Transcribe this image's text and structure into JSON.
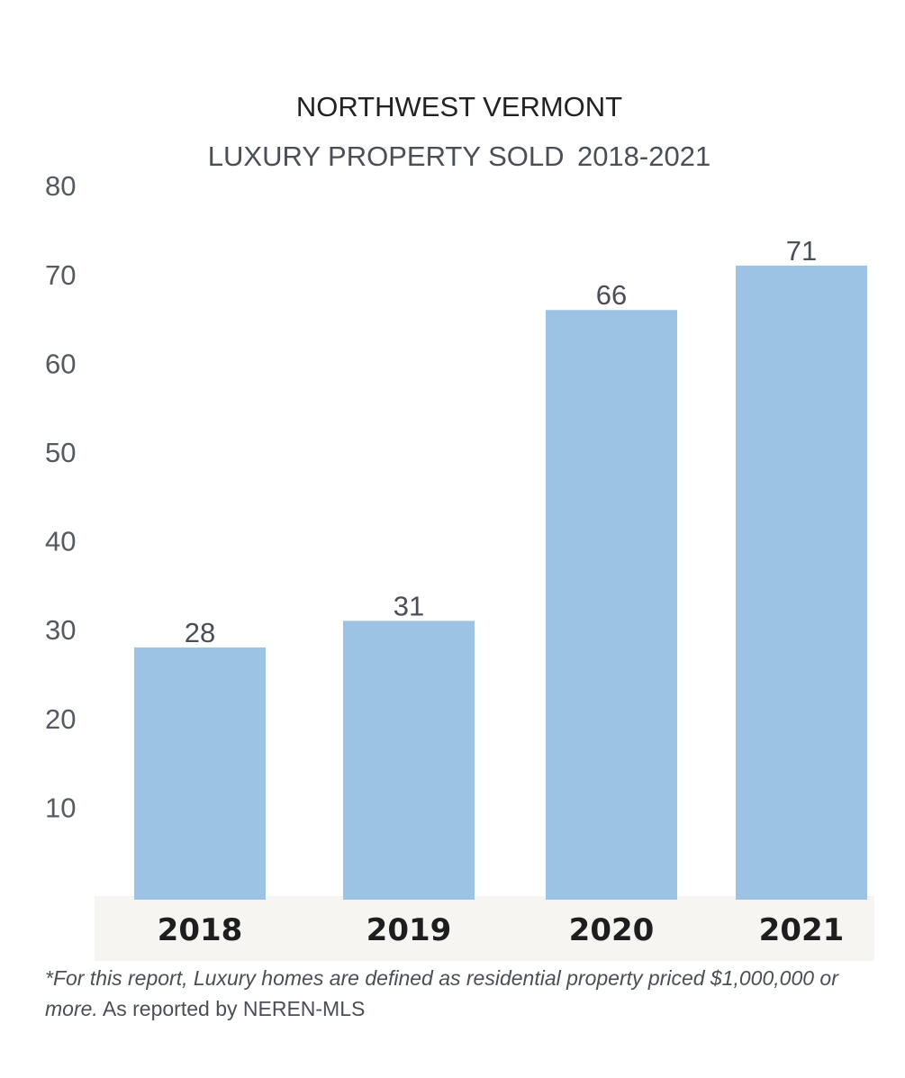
{
  "chart_data": {
    "type": "bar",
    "title": "NORTHWEST VERMONT",
    "subtitle_bold": "LUXURY PROPERTY SOLD",
    "subtitle_light": "2018-2021",
    "categories": [
      "2018",
      "2019",
      "2020",
      "2021"
    ],
    "values": [
      28,
      31,
      66,
      71
    ],
    "y_ticks": [
      "10",
      "20",
      "30",
      "40",
      "50",
      "60",
      "70",
      "80"
    ],
    "ylim": [
      0,
      80
    ],
    "xlabel": "",
    "ylabel": "",
    "grid": false,
    "bar_color": "#9dc3e4",
    "axis_band_color": "#f6f5f2"
  },
  "footnote": {
    "italic": "*For this report, Luxury homes are defined as residential property priced $1,000,000 or more.",
    "normal": "As reported by NEREN-MLS"
  }
}
